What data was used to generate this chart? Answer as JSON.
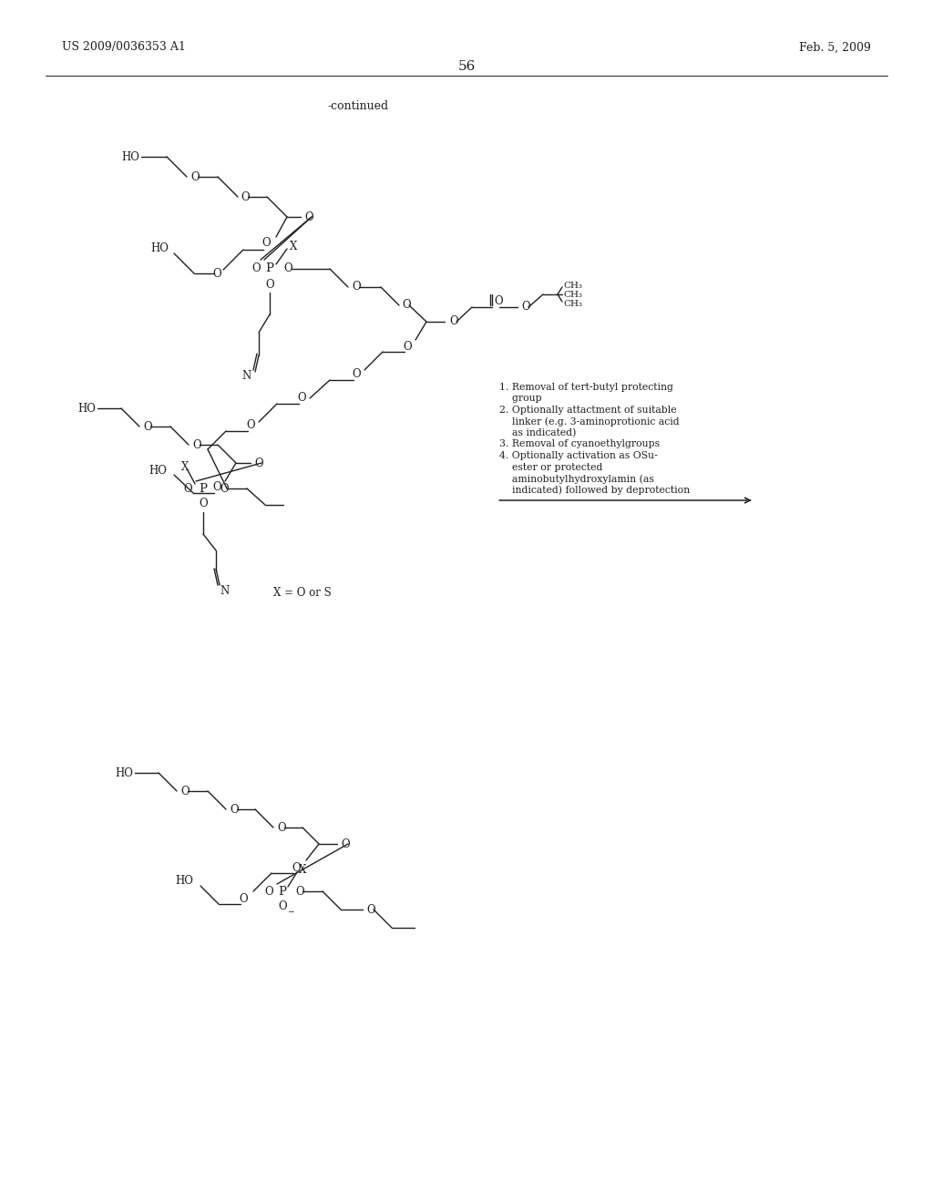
{
  "page_header_left": "US 2009/0036353 A1",
  "page_header_right": "Feb. 5, 2009",
  "page_number": "56",
  "continued_text": "-continued",
  "background_color": "#ffffff",
  "text_color": "#231f20",
  "annotation_text_lines": [
    "1. Removal of tert-butyl protecting",
    "    group",
    "2. Optionally attactment of suitable",
    "    linker (e.g. 3-aminoprotionic acid",
    "    as indicated)",
    "3. Removal of cyanoethylgroups",
    "4. Optionally activation as OSu-",
    "    ester or protected",
    "    aminobutylhydroxylamin (as",
    "    indicated) followed by deprotection"
  ],
  "x_eq": "X = O or S",
  "fs": 8.5
}
